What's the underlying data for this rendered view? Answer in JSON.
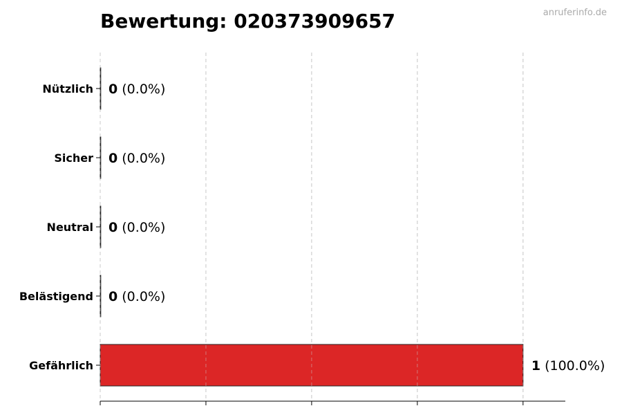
{
  "watermark": "anruferinfo.de",
  "chart_data": {
    "type": "bar",
    "orientation": "horizontal",
    "title": "Bewertung: 020373909657",
    "categories": [
      "Nützlich",
      "Sicher",
      "Neutral",
      "Belästigend",
      "Gefährlich"
    ],
    "values": [
      0,
      0,
      0,
      0,
      1
    ],
    "value_labels": [
      "0",
      "0",
      "0",
      "0",
      "1"
    ],
    "percent_labels": [
      "(0.0%)",
      "(0.0%)",
      "(0.0%)",
      "(0.0%)",
      "(100.0%)"
    ],
    "bar_colors": [
      "#4caf50",
      "#2196f3",
      "#9e9e9e",
      "#ff9800",
      "#dc2626"
    ],
    "xlim": [
      0,
      1.1
    ],
    "xticks": [
      0,
      0.25,
      0.5,
      0.75,
      1.0
    ],
    "grid": true,
    "xlabel": "",
    "ylabel": ""
  }
}
